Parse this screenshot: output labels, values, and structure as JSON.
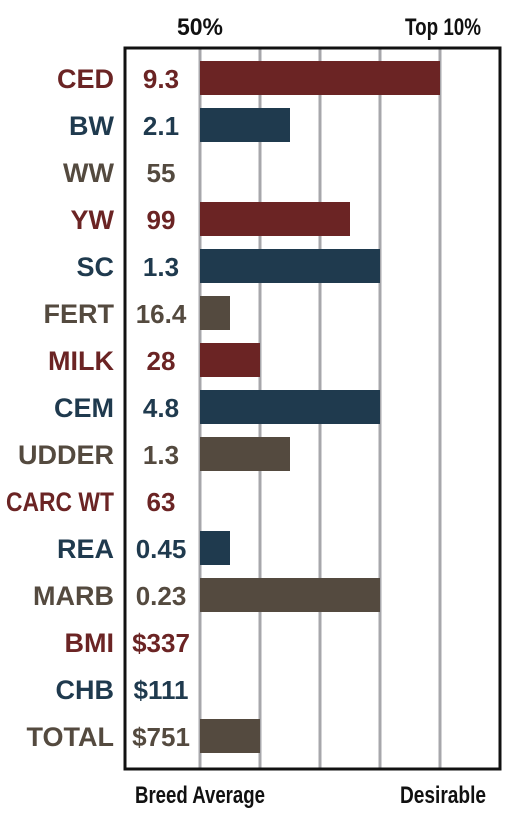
{
  "chart_data": {
    "type": "bar",
    "orientation": "horizontal",
    "top_labels": [
      "50%",
      "Top 10%"
    ],
    "bottom_labels": [
      "Breed Average",
      "Desirable"
    ],
    "xlim": [
      0,
      5
    ],
    "gridlines": [
      0,
      1,
      2,
      3,
      4
    ],
    "rows": [
      {
        "trait": "CED",
        "value": "9.3",
        "bar": 4.0,
        "color": "#6b2424"
      },
      {
        "trait": "BW",
        "value": "2.1",
        "bar": 1.5,
        "color": "#1f3a4e"
      },
      {
        "trait": "WW",
        "value": "55",
        "bar": 0,
        "color": "#544a3f"
      },
      {
        "trait": "YW",
        "value": "99",
        "bar": 2.5,
        "color": "#6b2424"
      },
      {
        "trait": "SC",
        "value": "1.3",
        "bar": 3.0,
        "color": "#1f3a4e"
      },
      {
        "trait": "FERT",
        "value": "16.4",
        "bar": 0.5,
        "color": "#544a3f"
      },
      {
        "trait": "MILK",
        "value": "28",
        "bar": 1.0,
        "color": "#6b2424"
      },
      {
        "trait": "CEM",
        "value": "4.8",
        "bar": 3.0,
        "color": "#1f3a4e"
      },
      {
        "trait": "UDDER",
        "value": "1.3",
        "bar": 1.5,
        "color": "#544a3f"
      },
      {
        "trait": "CARC WT",
        "value": "63",
        "bar": 0,
        "color": "#6b2424"
      },
      {
        "trait": "REA",
        "value": "0.45",
        "bar": 0.5,
        "color": "#1f3a4e"
      },
      {
        "trait": "MARB",
        "value": "0.23",
        "bar": 3.0,
        "color": "#544a3f"
      },
      {
        "trait": "BMI",
        "value": "$337",
        "bar": 0,
        "color": "#6b2424"
      },
      {
        "trait": "CHB",
        "value": "$111",
        "bar": 0,
        "color": "#1f3a4e"
      },
      {
        "trait": "TOTAL",
        "value": "$751",
        "bar": 1.0,
        "color": "#544a3f"
      }
    ]
  }
}
